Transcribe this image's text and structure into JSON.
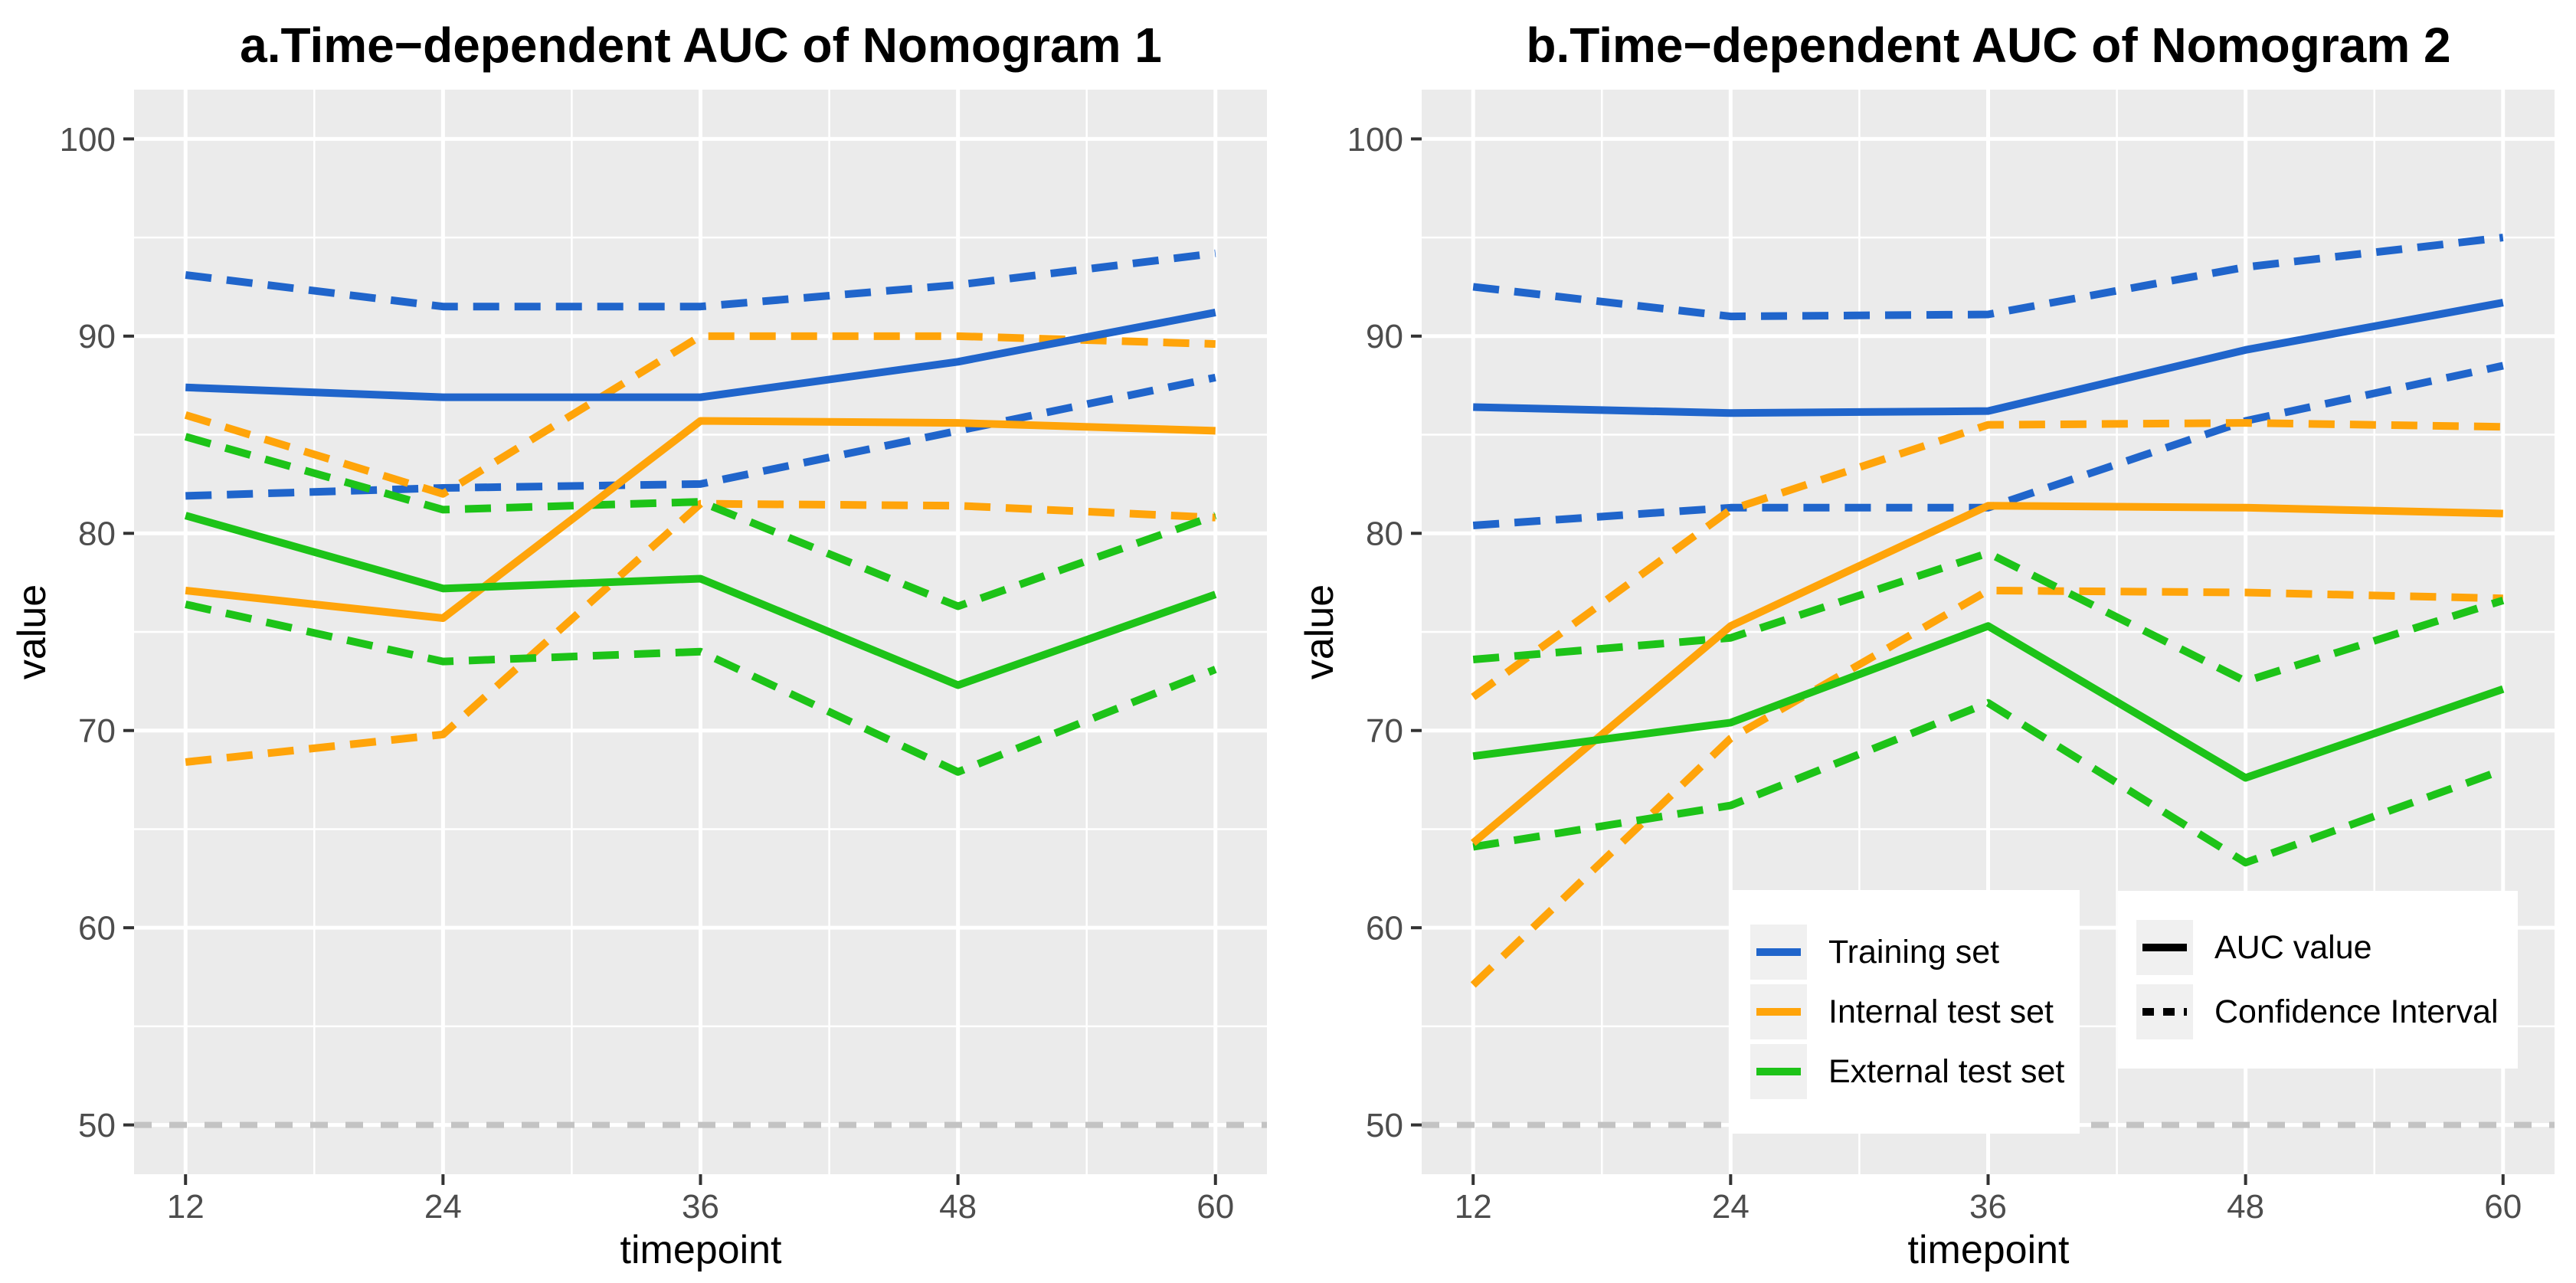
{
  "palette": {
    "blue": "#2065cb",
    "orange": "#ffa40a",
    "green": "#1dc318",
    "reference_gray": "#c3c3c3",
    "panel_bg": "#ebebeb",
    "grid": "#ffffff",
    "axis_text": "#4d4d4d",
    "tick_mark": "#333333",
    "title_color": "#000000"
  },
  "legends": {
    "series_legend": {
      "items": [
        {
          "label": "Training set",
          "color_key": "blue"
        },
        {
          "label": "Internal test set",
          "color_key": "orange"
        },
        {
          "label": "External test set",
          "color_key": "green"
        }
      ]
    },
    "linetype_legend": {
      "items": [
        {
          "label": "AUC value",
          "style": "solid"
        },
        {
          "label": "Confidence Interval",
          "style": "dashed"
        }
      ]
    }
  },
  "chart_data": [
    {
      "type": "line",
      "id": "a",
      "title": "a.Time−dependent AUC of Nomogram 1",
      "xlabel": "timepoint",
      "ylabel": "value",
      "x": [
        12,
        24,
        36,
        48,
        60
      ],
      "xticks": [
        12,
        24,
        36,
        48,
        60
      ],
      "yticks": [
        50,
        60,
        70,
        80,
        90,
        100
      ],
      "xlim": [
        9.6,
        62.4
      ],
      "ylim": [
        47.5,
        102.5
      ],
      "grid": true,
      "legend_position": "none",
      "reference_line_y": 50,
      "series": [
        {
          "name": "Training set AUC",
          "color_key": "blue",
          "linetype": "solid",
          "values": [
            87.4,
            86.9,
            86.9,
            88.7,
            91.2
          ]
        },
        {
          "name": "Training set CI upper",
          "color_key": "blue",
          "linetype": "dashed",
          "values": [
            93.1,
            91.5,
            91.5,
            92.6,
            94.2
          ]
        },
        {
          "name": "Training set CI lower",
          "color_key": "blue",
          "linetype": "dashed",
          "values": [
            81.9,
            82.3,
            82.5,
            85.2,
            87.9
          ]
        },
        {
          "name": "Internal test set AUC",
          "color_key": "orange",
          "linetype": "solid",
          "values": [
            77.1,
            75.7,
            85.7,
            85.6,
            85.2
          ]
        },
        {
          "name": "Internal test set CI upper",
          "color_key": "orange",
          "linetype": "dashed",
          "values": [
            86.0,
            82.0,
            90.0,
            90.0,
            89.6
          ]
        },
        {
          "name": "Internal test set CI lower",
          "color_key": "orange",
          "linetype": "dashed",
          "values": [
            68.4,
            69.8,
            81.5,
            81.4,
            80.8
          ]
        },
        {
          "name": "External test set AUC",
          "color_key": "green",
          "linetype": "solid",
          "values": [
            80.9,
            77.2,
            77.7,
            72.3,
            76.9
          ]
        },
        {
          "name": "External test set CI upper",
          "color_key": "green",
          "linetype": "dashed",
          "values": [
            84.9,
            81.2,
            81.6,
            76.3,
            80.9
          ]
        },
        {
          "name": "External test set CI lower",
          "color_key": "green",
          "linetype": "dashed",
          "values": [
            76.4,
            73.5,
            74.0,
            67.9,
            73.1
          ]
        }
      ]
    },
    {
      "type": "line",
      "id": "b",
      "title": "b.Time−dependent AUC of Nomogram 2",
      "xlabel": "timepoint",
      "ylabel": "value",
      "x": [
        12,
        24,
        36,
        48,
        60
      ],
      "xticks": [
        12,
        24,
        36,
        48,
        60
      ],
      "yticks": [
        50,
        60,
        70,
        80,
        90,
        100
      ],
      "xlim": [
        9.6,
        62.4
      ],
      "ylim": [
        47.5,
        102.5
      ],
      "grid": true,
      "legend_position": "inside-bottom",
      "reference_line_y": 50,
      "series": [
        {
          "name": "Training set AUC",
          "color_key": "blue",
          "linetype": "solid",
          "values": [
            86.4,
            86.1,
            86.2,
            89.3,
            91.7
          ]
        },
        {
          "name": "Training set CI upper",
          "color_key": "blue",
          "linetype": "dashed",
          "values": [
            92.5,
            91.0,
            91.1,
            93.5,
            95.0
          ]
        },
        {
          "name": "Training set CI lower",
          "color_key": "blue",
          "linetype": "dashed",
          "values": [
            80.4,
            81.3,
            81.3,
            85.7,
            88.5
          ]
        },
        {
          "name": "Internal test set AUC",
          "color_key": "orange",
          "linetype": "solid",
          "values": [
            64.3,
            75.3,
            81.4,
            81.3,
            81.0
          ]
        },
        {
          "name": "Internal test set CI upper",
          "color_key": "orange",
          "linetype": "dashed",
          "values": [
            71.7,
            81.2,
            85.5,
            85.6,
            85.4
          ]
        },
        {
          "name": "Internal test set CI lower",
          "color_key": "orange",
          "linetype": "dashed",
          "values": [
            57.1,
            69.6,
            77.1,
            77.0,
            76.7
          ]
        },
        {
          "name": "External test set AUC",
          "color_key": "green",
          "linetype": "solid",
          "values": [
            68.7,
            70.4,
            75.3,
            67.6,
            72.1
          ]
        },
        {
          "name": "External test set CI upper",
          "color_key": "green",
          "linetype": "dashed",
          "values": [
            73.6,
            74.7,
            79.0,
            72.5,
            76.6
          ]
        },
        {
          "name": "External test set CI lower",
          "color_key": "green",
          "linetype": "dashed",
          "values": [
            64.1,
            66.2,
            71.4,
            63.3,
            68.0
          ]
        }
      ]
    }
  ]
}
